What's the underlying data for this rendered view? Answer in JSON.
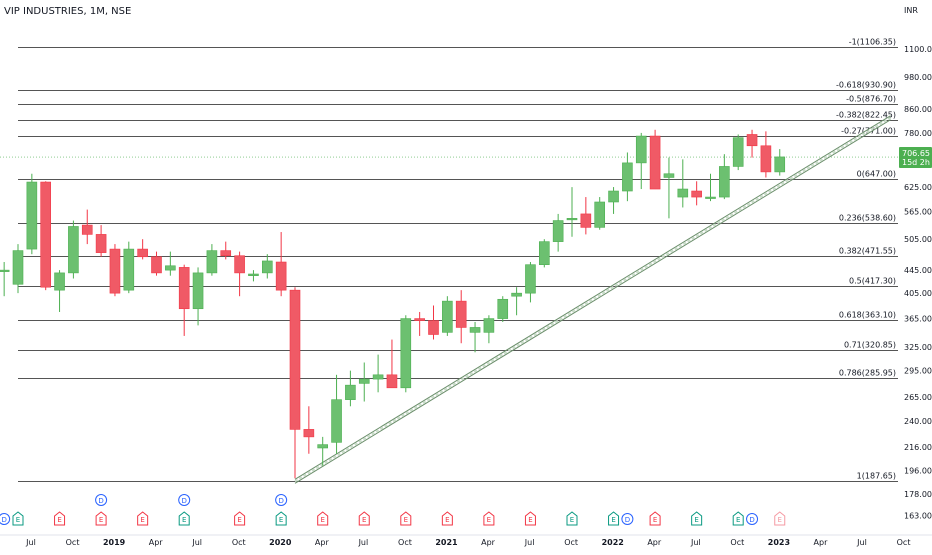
{
  "header": {
    "symbol_title": "VIP INDUSTRIES, 1M, NSE"
  },
  "axis": {
    "currency": "INR"
  },
  "colors": {
    "up": "#4caf50",
    "up_fill": "#6cc070",
    "down": "#f23645",
    "down_fill": "#f05a66",
    "fib_line": "#555555",
    "grid": "#ffffff",
    "trend": "#6b8e6b",
    "event_blue": "#2962ff",
    "event_green": "#089981",
    "event_red": "#f23645",
    "price_badge": "#4caf50"
  },
  "current_price": {
    "value": 706.65,
    "label": "706.65",
    "sublabel": "15d 2h"
  },
  "chart_data": {
    "type": "candlestick",
    "title": "VIP INDUSTRIES, 1M, NSE",
    "y_scale": "log",
    "ylim": [
      155,
      1300
    ],
    "y_ticks": [
      {
        "v": 1100,
        "label": "1100.00"
      },
      {
        "v": 980,
        "label": "980.00"
      },
      {
        "v": 860,
        "label": "860.00"
      },
      {
        "v": 780,
        "label": "780.00"
      },
      {
        "v": 625,
        "label": "625.00"
      },
      {
        "v": 565,
        "label": "565.00"
      },
      {
        "v": 505,
        "label": "505.00"
      },
      {
        "v": 445,
        "label": "445.00"
      },
      {
        "v": 405,
        "label": "405.00"
      },
      {
        "v": 365,
        "label": "365.00"
      },
      {
        "v": 325,
        "label": "325.00"
      },
      {
        "v": 295,
        "label": "295.00"
      },
      {
        "v": 265,
        "label": "265.00"
      },
      {
        "v": 240,
        "label": "240.00"
      },
      {
        "v": 216,
        "label": "216.00"
      },
      {
        "v": 196,
        "label": "196.00"
      },
      {
        "v": 178,
        "label": "178.00"
      },
      {
        "v": 163,
        "label": "163.00"
      }
    ],
    "x_labels": [
      "Jul",
      "Oct",
      "2019",
      "Apr",
      "Jul",
      "Oct",
      "2020",
      "Apr",
      "Jul",
      "Oct",
      "2021",
      "Apr",
      "Jul",
      "Oct",
      "2022",
      "Apr",
      "Jul",
      "Oct",
      "2023",
      "Apr",
      "Jul",
      "Oct"
    ],
    "x_label_bold": [
      "2019",
      "2020",
      "2021",
      "2022",
      "2023"
    ],
    "fib_levels": [
      {
        "value": 1106.35,
        "label": "-1(1106.35)"
      },
      {
        "value": 930.9,
        "label": "-0.618(930.90)"
      },
      {
        "value": 876.7,
        "label": "-0.5(876.70)"
      },
      {
        "value": 822.45,
        "label": "-0.382(822.45)"
      },
      {
        "value": 771.0,
        "label": "-0.27(771.00)"
      },
      {
        "value": 647.0,
        "label": "0(647.00)"
      },
      {
        "value": 538.6,
        "label": "0.236(538.60)"
      },
      {
        "value": 471.55,
        "label": "0.382(471.55)"
      },
      {
        "value": 417.3,
        "label": "0.5(417.30)"
      },
      {
        "value": 363.1,
        "label": "0.618(363.10)"
      },
      {
        "value": 320.85,
        "label": "0.71(320.85)"
      },
      {
        "value": 285.95,
        "label": "0.786(285.95)"
      },
      {
        "value": 187.65,
        "label": "1(187.65)"
      }
    ],
    "trendline": {
      "start": {
        "month": "2020-03",
        "price": 187.65
      },
      "end": {
        "month": "2023-10",
        "price": 830
      }
    },
    "candles": [
      {
        "m": "2018-06",
        "o": 445,
        "h": 460,
        "l": 400,
        "c": 445
      },
      {
        "m": "2018-07",
        "o": 420,
        "h": 495,
        "l": 405,
        "c": 482
      },
      {
        "m": "2018-08",
        "o": 485,
        "h": 660,
        "l": 475,
        "c": 638
      },
      {
        "m": "2018-09",
        "o": 638,
        "h": 640,
        "l": 410,
        "c": 415
      },
      {
        "m": "2018-10",
        "o": 410,
        "h": 445,
        "l": 375,
        "c": 440
      },
      {
        "m": "2018-11",
        "o": 440,
        "h": 545,
        "l": 430,
        "c": 532
      },
      {
        "m": "2018-12",
        "o": 535,
        "h": 570,
        "l": 495,
        "c": 515
      },
      {
        "m": "2019-01",
        "o": 515,
        "h": 535,
        "l": 470,
        "c": 478
      },
      {
        "m": "2019-02",
        "o": 485,
        "h": 495,
        "l": 400,
        "c": 405
      },
      {
        "m": "2019-03",
        "o": 410,
        "h": 500,
        "l": 405,
        "c": 485
      },
      {
        "m": "2019-04",
        "o": 485,
        "h": 505,
        "l": 465,
        "c": 470
      },
      {
        "m": "2019-05",
        "o": 470,
        "h": 480,
        "l": 435,
        "c": 440
      },
      {
        "m": "2019-06",
        "o": 445,
        "h": 480,
        "l": 435,
        "c": 453
      },
      {
        "m": "2019-07",
        "o": 450,
        "h": 455,
        "l": 340,
        "c": 380
      },
      {
        "m": "2019-08",
        "o": 380,
        "h": 450,
        "l": 355,
        "c": 440
      },
      {
        "m": "2019-09",
        "o": 440,
        "h": 495,
        "l": 435,
        "c": 482
      },
      {
        "m": "2019-10",
        "o": 482,
        "h": 500,
        "l": 465,
        "c": 472
      },
      {
        "m": "2019-11",
        "o": 472,
        "h": 480,
        "l": 400,
        "c": 440
      },
      {
        "m": "2019-12",
        "o": 435,
        "h": 445,
        "l": 425,
        "c": 438
      },
      {
        "m": "2020-01",
        "o": 440,
        "h": 475,
        "l": 430,
        "c": 462
      },
      {
        "m": "2020-02",
        "o": 460,
        "h": 520,
        "l": 400,
        "c": 410
      },
      {
        "m": "2020-03",
        "o": 410,
        "h": 415,
        "l": 190,
        "c": 232
      },
      {
        "m": "2020-04",
        "o": 232,
        "h": 255,
        "l": 210,
        "c": 225
      },
      {
        "m": "2020-05",
        "o": 215,
        "h": 225,
        "l": 200,
        "c": 218
      },
      {
        "m": "2020-06",
        "o": 220,
        "h": 290,
        "l": 210,
        "c": 262
      },
      {
        "m": "2020-07",
        "o": 262,
        "h": 295,
        "l": 255,
        "c": 278
      },
      {
        "m": "2020-08",
        "o": 280,
        "h": 305,
        "l": 260,
        "c": 285
      },
      {
        "m": "2020-09",
        "o": 285,
        "h": 315,
        "l": 270,
        "c": 290
      },
      {
        "m": "2020-10",
        "o": 290,
        "h": 335,
        "l": 275,
        "c": 275
      },
      {
        "m": "2020-11",
        "o": 275,
        "h": 370,
        "l": 270,
        "c": 365
      },
      {
        "m": "2020-12",
        "o": 365,
        "h": 375,
        "l": 340,
        "c": 362
      },
      {
        "m": "2021-01",
        "o": 362,
        "h": 385,
        "l": 335,
        "c": 342
      },
      {
        "m": "2021-02",
        "o": 345,
        "h": 400,
        "l": 340,
        "c": 392
      },
      {
        "m": "2021-03",
        "o": 392,
        "h": 410,
        "l": 330,
        "c": 352
      },
      {
        "m": "2021-04",
        "o": 345,
        "h": 360,
        "l": 318,
        "c": 352
      },
      {
        "m": "2021-05",
        "o": 345,
        "h": 370,
        "l": 330,
        "c": 365
      },
      {
        "m": "2021-06",
        "o": 365,
        "h": 400,
        "l": 360,
        "c": 395
      },
      {
        "m": "2021-07",
        "o": 400,
        "h": 415,
        "l": 370,
        "c": 405
      },
      {
        "m": "2021-08",
        "o": 405,
        "h": 460,
        "l": 390,
        "c": 455
      },
      {
        "m": "2021-09",
        "o": 455,
        "h": 505,
        "l": 450,
        "c": 500
      },
      {
        "m": "2021-10",
        "o": 500,
        "h": 560,
        "l": 480,
        "c": 545
      },
      {
        "m": "2021-11",
        "o": 550,
        "h": 625,
        "l": 510,
        "c": 550
      },
      {
        "m": "2021-12",
        "o": 560,
        "h": 600,
        "l": 515,
        "c": 530
      },
      {
        "m": "2022-01",
        "o": 530,
        "h": 600,
        "l": 525,
        "c": 588
      },
      {
        "m": "2022-02",
        "o": 588,
        "h": 625,
        "l": 560,
        "c": 615
      },
      {
        "m": "2022-03",
        "o": 615,
        "h": 720,
        "l": 590,
        "c": 690
      },
      {
        "m": "2022-04",
        "o": 690,
        "h": 780,
        "l": 620,
        "c": 770
      },
      {
        "m": "2022-05",
        "o": 770,
        "h": 790,
        "l": 620,
        "c": 620
      },
      {
        "m": "2022-06",
        "o": 650,
        "h": 705,
        "l": 550,
        "c": 660
      },
      {
        "m": "2022-07",
        "o": 600,
        "h": 700,
        "l": 575,
        "c": 620
      },
      {
        "m": "2022-08",
        "o": 615,
        "h": 640,
        "l": 580,
        "c": 600
      },
      {
        "m": "2022-09",
        "o": 600,
        "h": 660,
        "l": 590,
        "c": 600
      },
      {
        "m": "2022-10",
        "o": 600,
        "h": 715,
        "l": 595,
        "c": 680
      },
      {
        "m": "2022-11",
        "o": 680,
        "h": 775,
        "l": 670,
        "c": 765
      },
      {
        "m": "2022-12",
        "o": 775,
        "h": 790,
        "l": 705,
        "c": 740
      },
      {
        "m": "2023-01",
        "o": 740,
        "h": 785,
        "l": 650,
        "c": 665
      },
      {
        "m": "2023-02",
        "o": 665,
        "h": 730,
        "l": 655,
        "c": 707
      }
    ],
    "events": [
      {
        "m": "2018-06",
        "type": "D"
      },
      {
        "m": "2018-07",
        "type": "E"
      },
      {
        "m": "2018-10",
        "type": "E"
      },
      {
        "m": "2019-01",
        "type": "E"
      },
      {
        "m": "2019-01",
        "type": "D",
        "row": 2
      },
      {
        "m": "2019-04",
        "type": "E"
      },
      {
        "m": "2019-07",
        "type": "E"
      },
      {
        "m": "2019-07",
        "type": "D",
        "row": 2
      },
      {
        "m": "2019-11",
        "type": "E"
      },
      {
        "m": "2020-02",
        "type": "E"
      },
      {
        "m": "2020-02",
        "type": "D",
        "row": 2
      },
      {
        "m": "2020-05",
        "type": "E"
      },
      {
        "m": "2020-08",
        "type": "E"
      },
      {
        "m": "2020-11",
        "type": "E"
      },
      {
        "m": "2021-02",
        "type": "E"
      },
      {
        "m": "2021-05",
        "type": "E"
      },
      {
        "m": "2021-08",
        "type": "E"
      },
      {
        "m": "2021-11",
        "type": "E"
      },
      {
        "m": "2022-02",
        "type": "E"
      },
      {
        "m": "2022-03",
        "type": "D"
      },
      {
        "m": "2022-05",
        "type": "E"
      },
      {
        "m": "2022-08",
        "type": "E"
      },
      {
        "m": "2022-11",
        "type": "E"
      },
      {
        "m": "2022-12",
        "type": "D"
      },
      {
        "m": "2023-02",
        "type": "E",
        "future": true
      }
    ]
  }
}
